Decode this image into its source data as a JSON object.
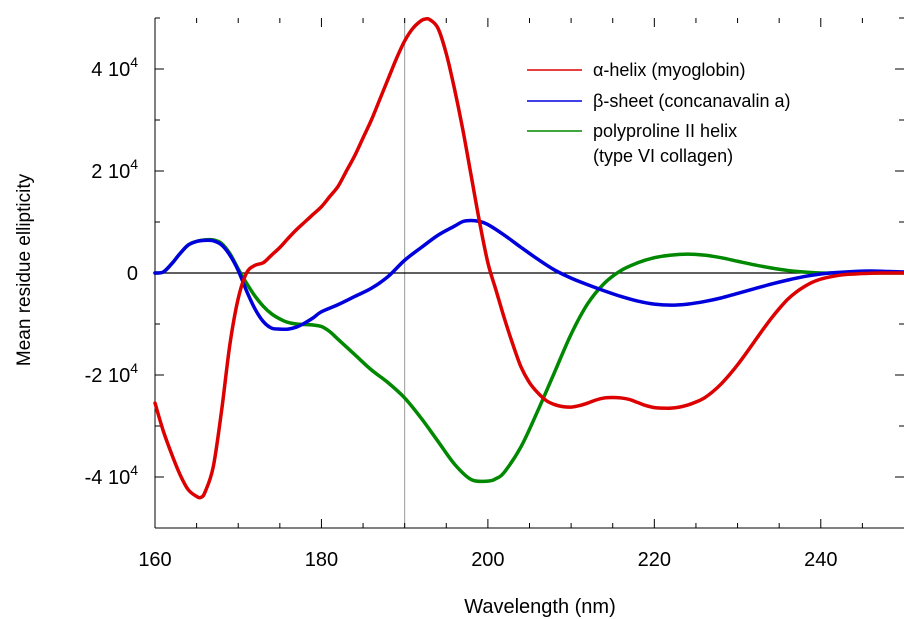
{
  "chart_data": {
    "type": "line",
    "title": "",
    "xlabel": "Wavelength (nm)",
    "ylabel": "Mean residue ellipticity",
    "xlim": [
      160,
      250
    ],
    "ylim": [
      -50000,
      50000
    ],
    "x_ticks": [
      160,
      180,
      200,
      220,
      240
    ],
    "x_tick_labels": [
      "160",
      "180",
      "200",
      "220",
      "240"
    ],
    "y_ticks": [
      40000,
      20000,
      0,
      -20000,
      -40000
    ],
    "y_tick_labels": [
      {
        "base": "4 10",
        "exp": "4"
      },
      {
        "base": "2 10",
        "exp": "4"
      },
      {
        "base": "0",
        "exp": ""
      },
      {
        "base": "-2 10",
        "exp": "4"
      },
      {
        "base": "-4 10",
        "exp": "4"
      }
    ],
    "reference_line_x": 190,
    "zero_line": true,
    "grid": false,
    "legend_position": "top-right",
    "series": [
      {
        "name": "α-helix (myoglobin)",
        "color": "#dd0000",
        "x": [
          160,
          161,
          162,
          163,
          164,
          165,
          165.5,
          166,
          167,
          168,
          169,
          170,
          171,
          172,
          173,
          174,
          175,
          176,
          177,
          178,
          179,
          180,
          181,
          182,
          183,
          184,
          185,
          186,
          187,
          188,
          189,
          190,
          191,
          192,
          192.5,
          193,
          194,
          195,
          196,
          197,
          198,
          199,
          200,
          201,
          202,
          203,
          204,
          205,
          206,
          207,
          208,
          209,
          210,
          211,
          212,
          213,
          214,
          215,
          216,
          217,
          218,
          219,
          220,
          221,
          222,
          223,
          224,
          225,
          226,
          227,
          228,
          229,
          230,
          231,
          232,
          233,
          234,
          235,
          236,
          237,
          238,
          239,
          240,
          241,
          242,
          243,
          244,
          245,
          246,
          247,
          248,
          249,
          250
        ],
        "y": [
          -25500,
          -31000,
          -35500,
          -39500,
          -42500,
          -43800,
          -44000,
          -43000,
          -38000,
          -27000,
          -14000,
          -5000,
          0,
          1500,
          2000,
          3500,
          5000,
          6800,
          8500,
          10000,
          11500,
          13000,
          15000,
          17000,
          20000,
          23000,
          26500,
          30000,
          34000,
          38000,
          42000,
          45500,
          48000,
          49500,
          49800,
          49700,
          48000,
          43000,
          36000,
          28000,
          19000,
          10000,
          2000,
          -3500,
          -9000,
          -14000,
          -18500,
          -21500,
          -23500,
          -25000,
          -25800,
          -26200,
          -26300,
          -26000,
          -25500,
          -24900,
          -24500,
          -24400,
          -24500,
          -24800,
          -25400,
          -26000,
          -26400,
          -26500,
          -26500,
          -26300,
          -25900,
          -25300,
          -24500,
          -23300,
          -21800,
          -20000,
          -18000,
          -15800,
          -13500,
          -11200,
          -9000,
          -7000,
          -5200,
          -3800,
          -2700,
          -1800,
          -1200,
          -800,
          -500,
          -300,
          -200,
          -100,
          -50,
          0,
          0,
          0,
          0
        ]
      },
      {
        "name": "β-sheet (concanavalin a)",
        "color": "#0000dd",
        "x": [
          160,
          161,
          162,
          163,
          164,
          165,
          166,
          167,
          168,
          169,
          170,
          171,
          172,
          173,
          174,
          175,
          176,
          177,
          178,
          179,
          180,
          182,
          184,
          186,
          188,
          190,
          192,
          194,
          196,
          197,
          198,
          199,
          200,
          202,
          204,
          206,
          208,
          210,
          212,
          214,
          216,
          218,
          220,
          222,
          224,
          226,
          228,
          230,
          232,
          234,
          236,
          238,
          240,
          242,
          244,
          246,
          248,
          250
        ],
        "y": [
          0,
          200,
          1800,
          3800,
          5500,
          6200,
          6400,
          6300,
          5500,
          3500,
          500,
          -3500,
          -7000,
          -9500,
          -10800,
          -11000,
          -11000,
          -10600,
          -9800,
          -8800,
          -7600,
          -6200,
          -4600,
          -3000,
          -700,
          2500,
          5000,
          7400,
          9200,
          10100,
          10300,
          10100,
          9500,
          7400,
          5000,
          2700,
          600,
          -1000,
          -2300,
          -3500,
          -4600,
          -5500,
          -6100,
          -6300,
          -6100,
          -5600,
          -4900,
          -4000,
          -3100,
          -2200,
          -1400,
          -700,
          -200,
          100,
          300,
          400,
          300,
          200
        ]
      },
      {
        "name": "polyproline II helix\n(type VI collagen)",
        "color": "#008800",
        "x": [
          160,
          161,
          162,
          163,
          164,
          165,
          166,
          167,
          168,
          169,
          170,
          171,
          172,
          173,
          174,
          175,
          176,
          177,
          178,
          179,
          180,
          181,
          182,
          184,
          186,
          188,
          190,
          192,
          194,
          196,
          198,
          200,
          201,
          202,
          204,
          206,
          208,
          210,
          212,
          214,
          216,
          218,
          220,
          222,
          224,
          226,
          228,
          230,
          232,
          234,
          236,
          238,
          240,
          242,
          244,
          246,
          248,
          250
        ],
        "y": [
          0,
          200,
          1800,
          3800,
          5500,
          6200,
          6500,
          6500,
          5800,
          3800,
          800,
          -2000,
          -4500,
          -6500,
          -8000,
          -9000,
          -9700,
          -10000,
          -10100,
          -10200,
          -10500,
          -11500,
          -13000,
          -16000,
          -19000,
          -21500,
          -24500,
          -28500,
          -33000,
          -37500,
          -40500,
          -40800,
          -40300,
          -39000,
          -34000,
          -27000,
          -19500,
          -12000,
          -6000,
          -2000,
          500,
          2000,
          3000,
          3500,
          3700,
          3500,
          3000,
          2300,
          1600,
          1000,
          500,
          200,
          0,
          0,
          0,
          0,
          0,
          0
        ]
      }
    ]
  }
}
